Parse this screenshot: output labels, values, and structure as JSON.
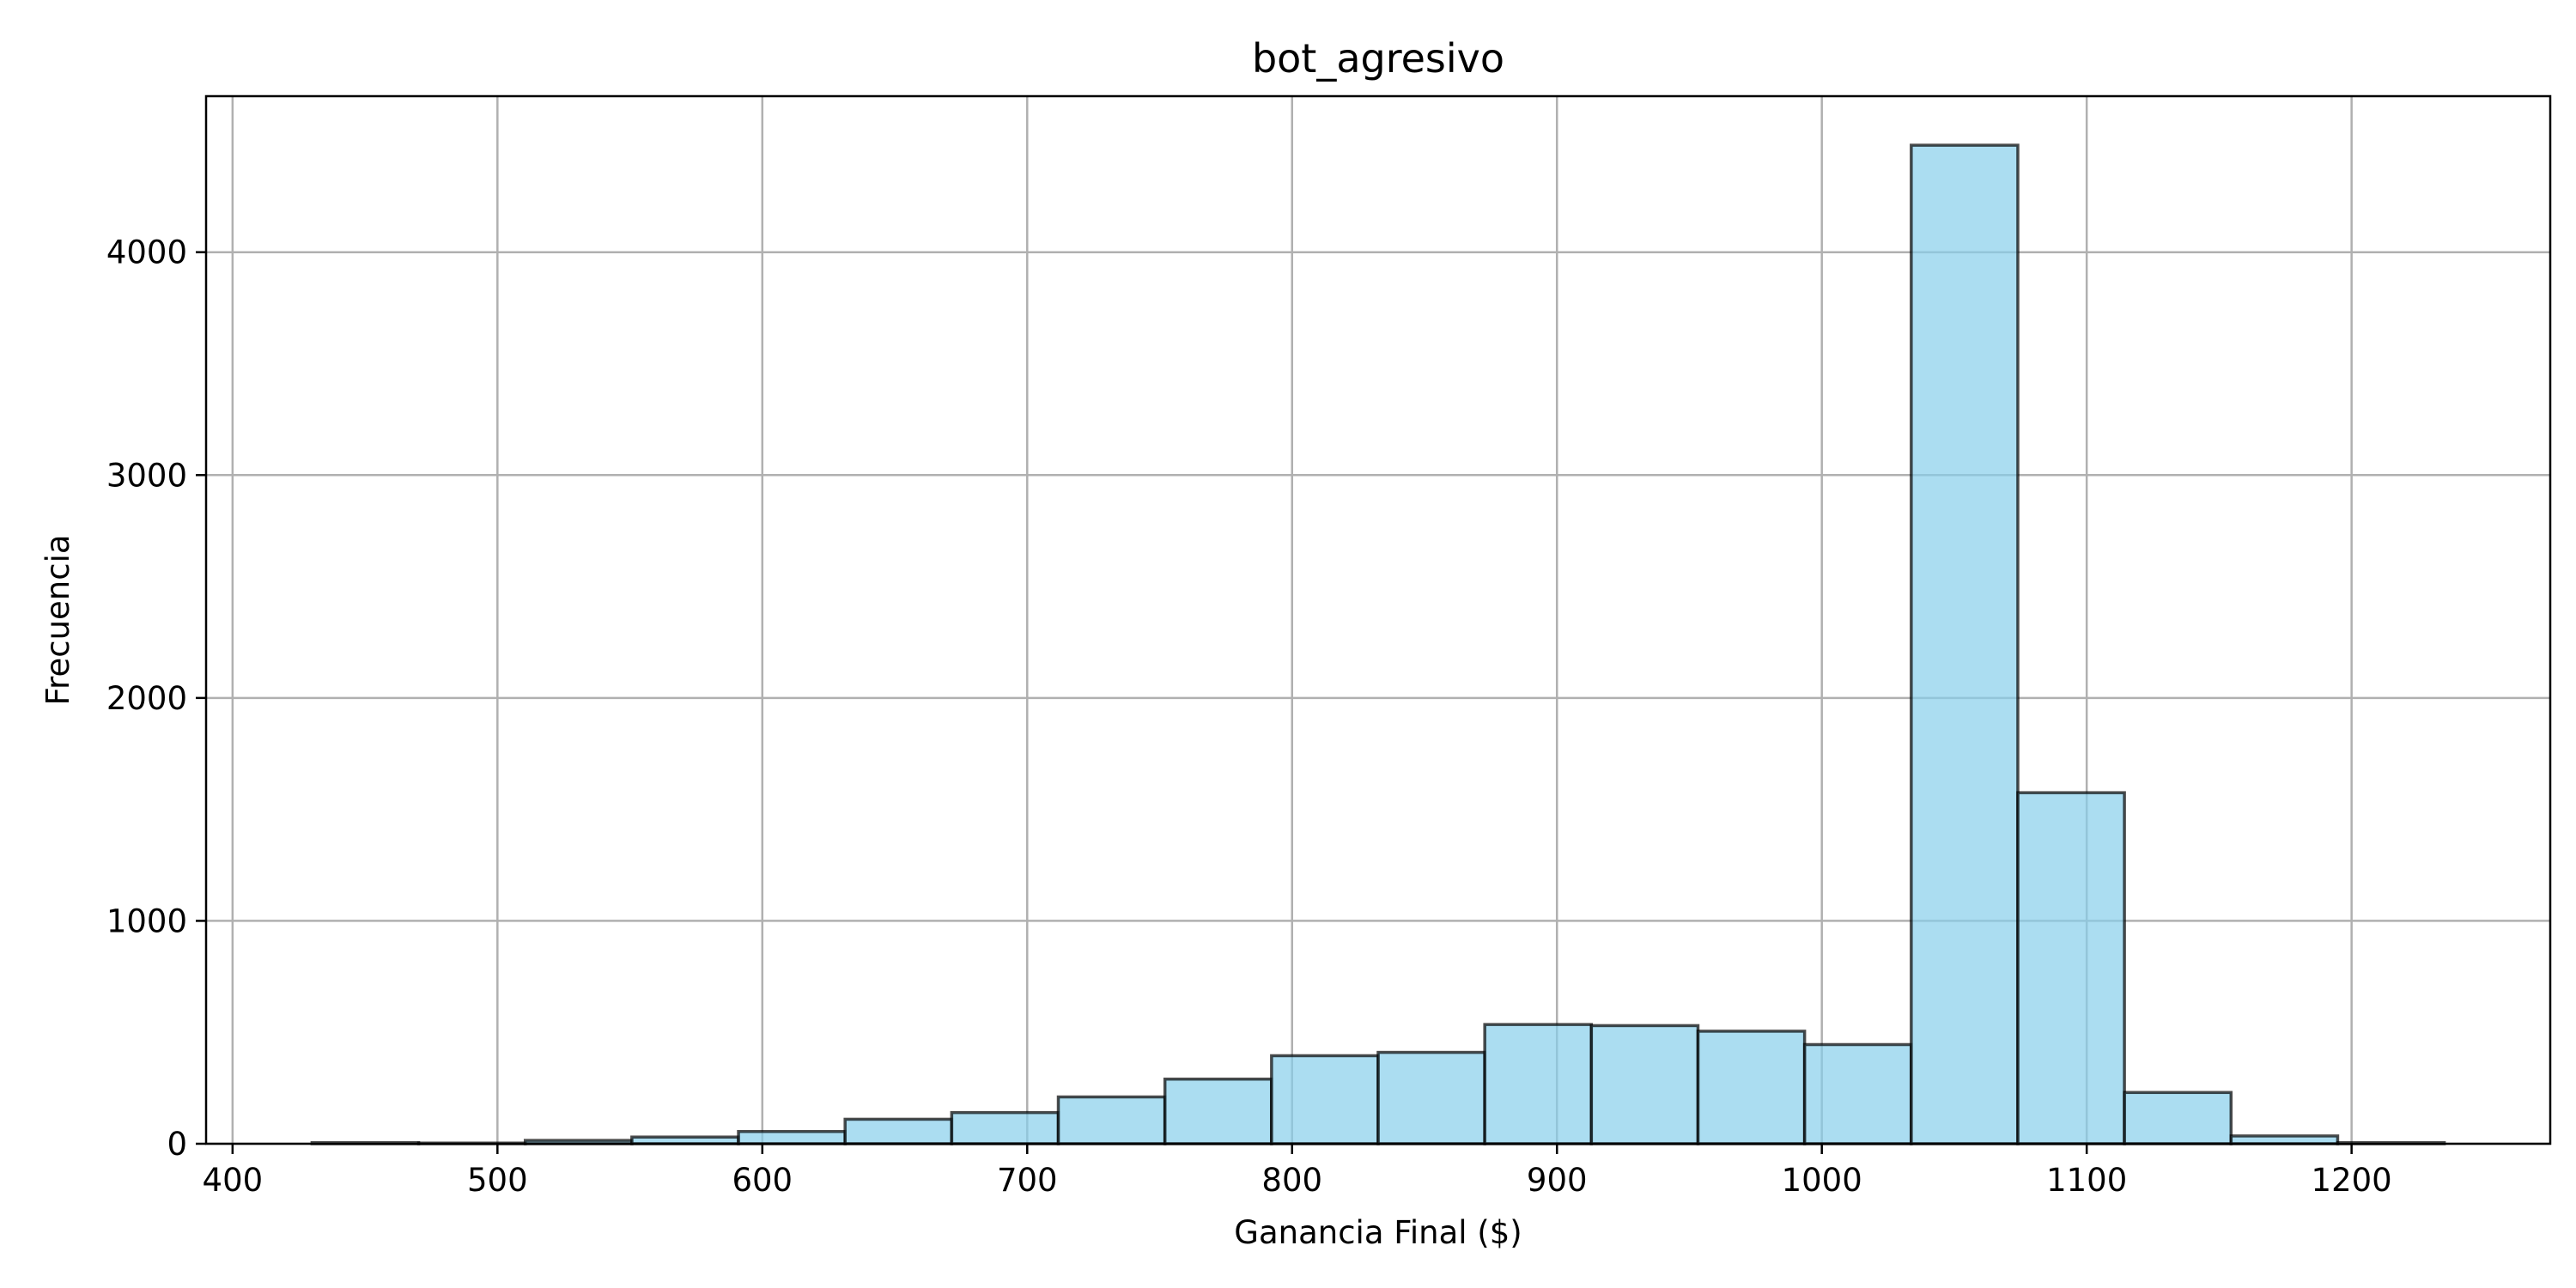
{
  "chart_data": {
    "type": "bar",
    "title": "bot_agresivo",
    "xlabel": "Ganancia Final ($)",
    "ylabel": "Frecuencia",
    "xlim": [
      390,
      1275
    ],
    "ylim": [
      0,
      4700
    ],
    "xticks": [
      400,
      500,
      600,
      700,
      800,
      900,
      1000,
      1100,
      1200
    ],
    "yticks": [
      0,
      1000,
      2000,
      3000,
      4000
    ],
    "grid": true,
    "bin_edges": [
      430,
      470.25,
      510.5,
      550.75,
      591,
      631.25,
      671.5,
      711.75,
      752,
      792.25,
      832.5,
      872.75,
      913,
      953.25,
      993.5,
      1033.75,
      1074,
      1114.25,
      1154.5,
      1194.75,
      1235
    ],
    "values": [
      5,
      3,
      15,
      30,
      55,
      110,
      140,
      210,
      290,
      395,
      410,
      535,
      530,
      505,
      445,
      4480,
      1575,
      230,
      35,
      5
    ],
    "bar_color": "#87ceeb",
    "edge_color": "#000000"
  }
}
